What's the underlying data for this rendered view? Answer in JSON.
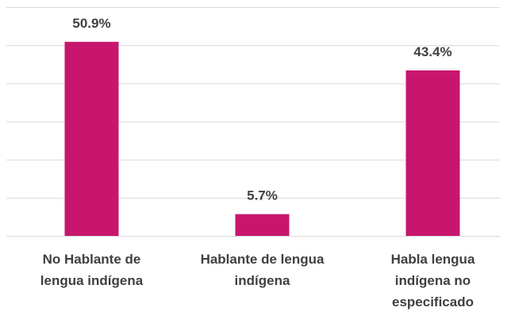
{
  "chart_data": {
    "type": "bar",
    "categories": [
      "No Hablante de lengua indígena",
      "Hablante de lengua indígena",
      "Habla lengua indígena no especificado"
    ],
    "values": [
      50.9,
      5.7,
      43.4
    ],
    "value_labels": [
      "50.9%",
      "5.7%",
      "43.4%"
    ],
    "color": "#c8166e",
    "ylim": [
      0,
      60
    ],
    "yticks": [
      0,
      10,
      20,
      30,
      40,
      50,
      60
    ],
    "grid": true
  }
}
